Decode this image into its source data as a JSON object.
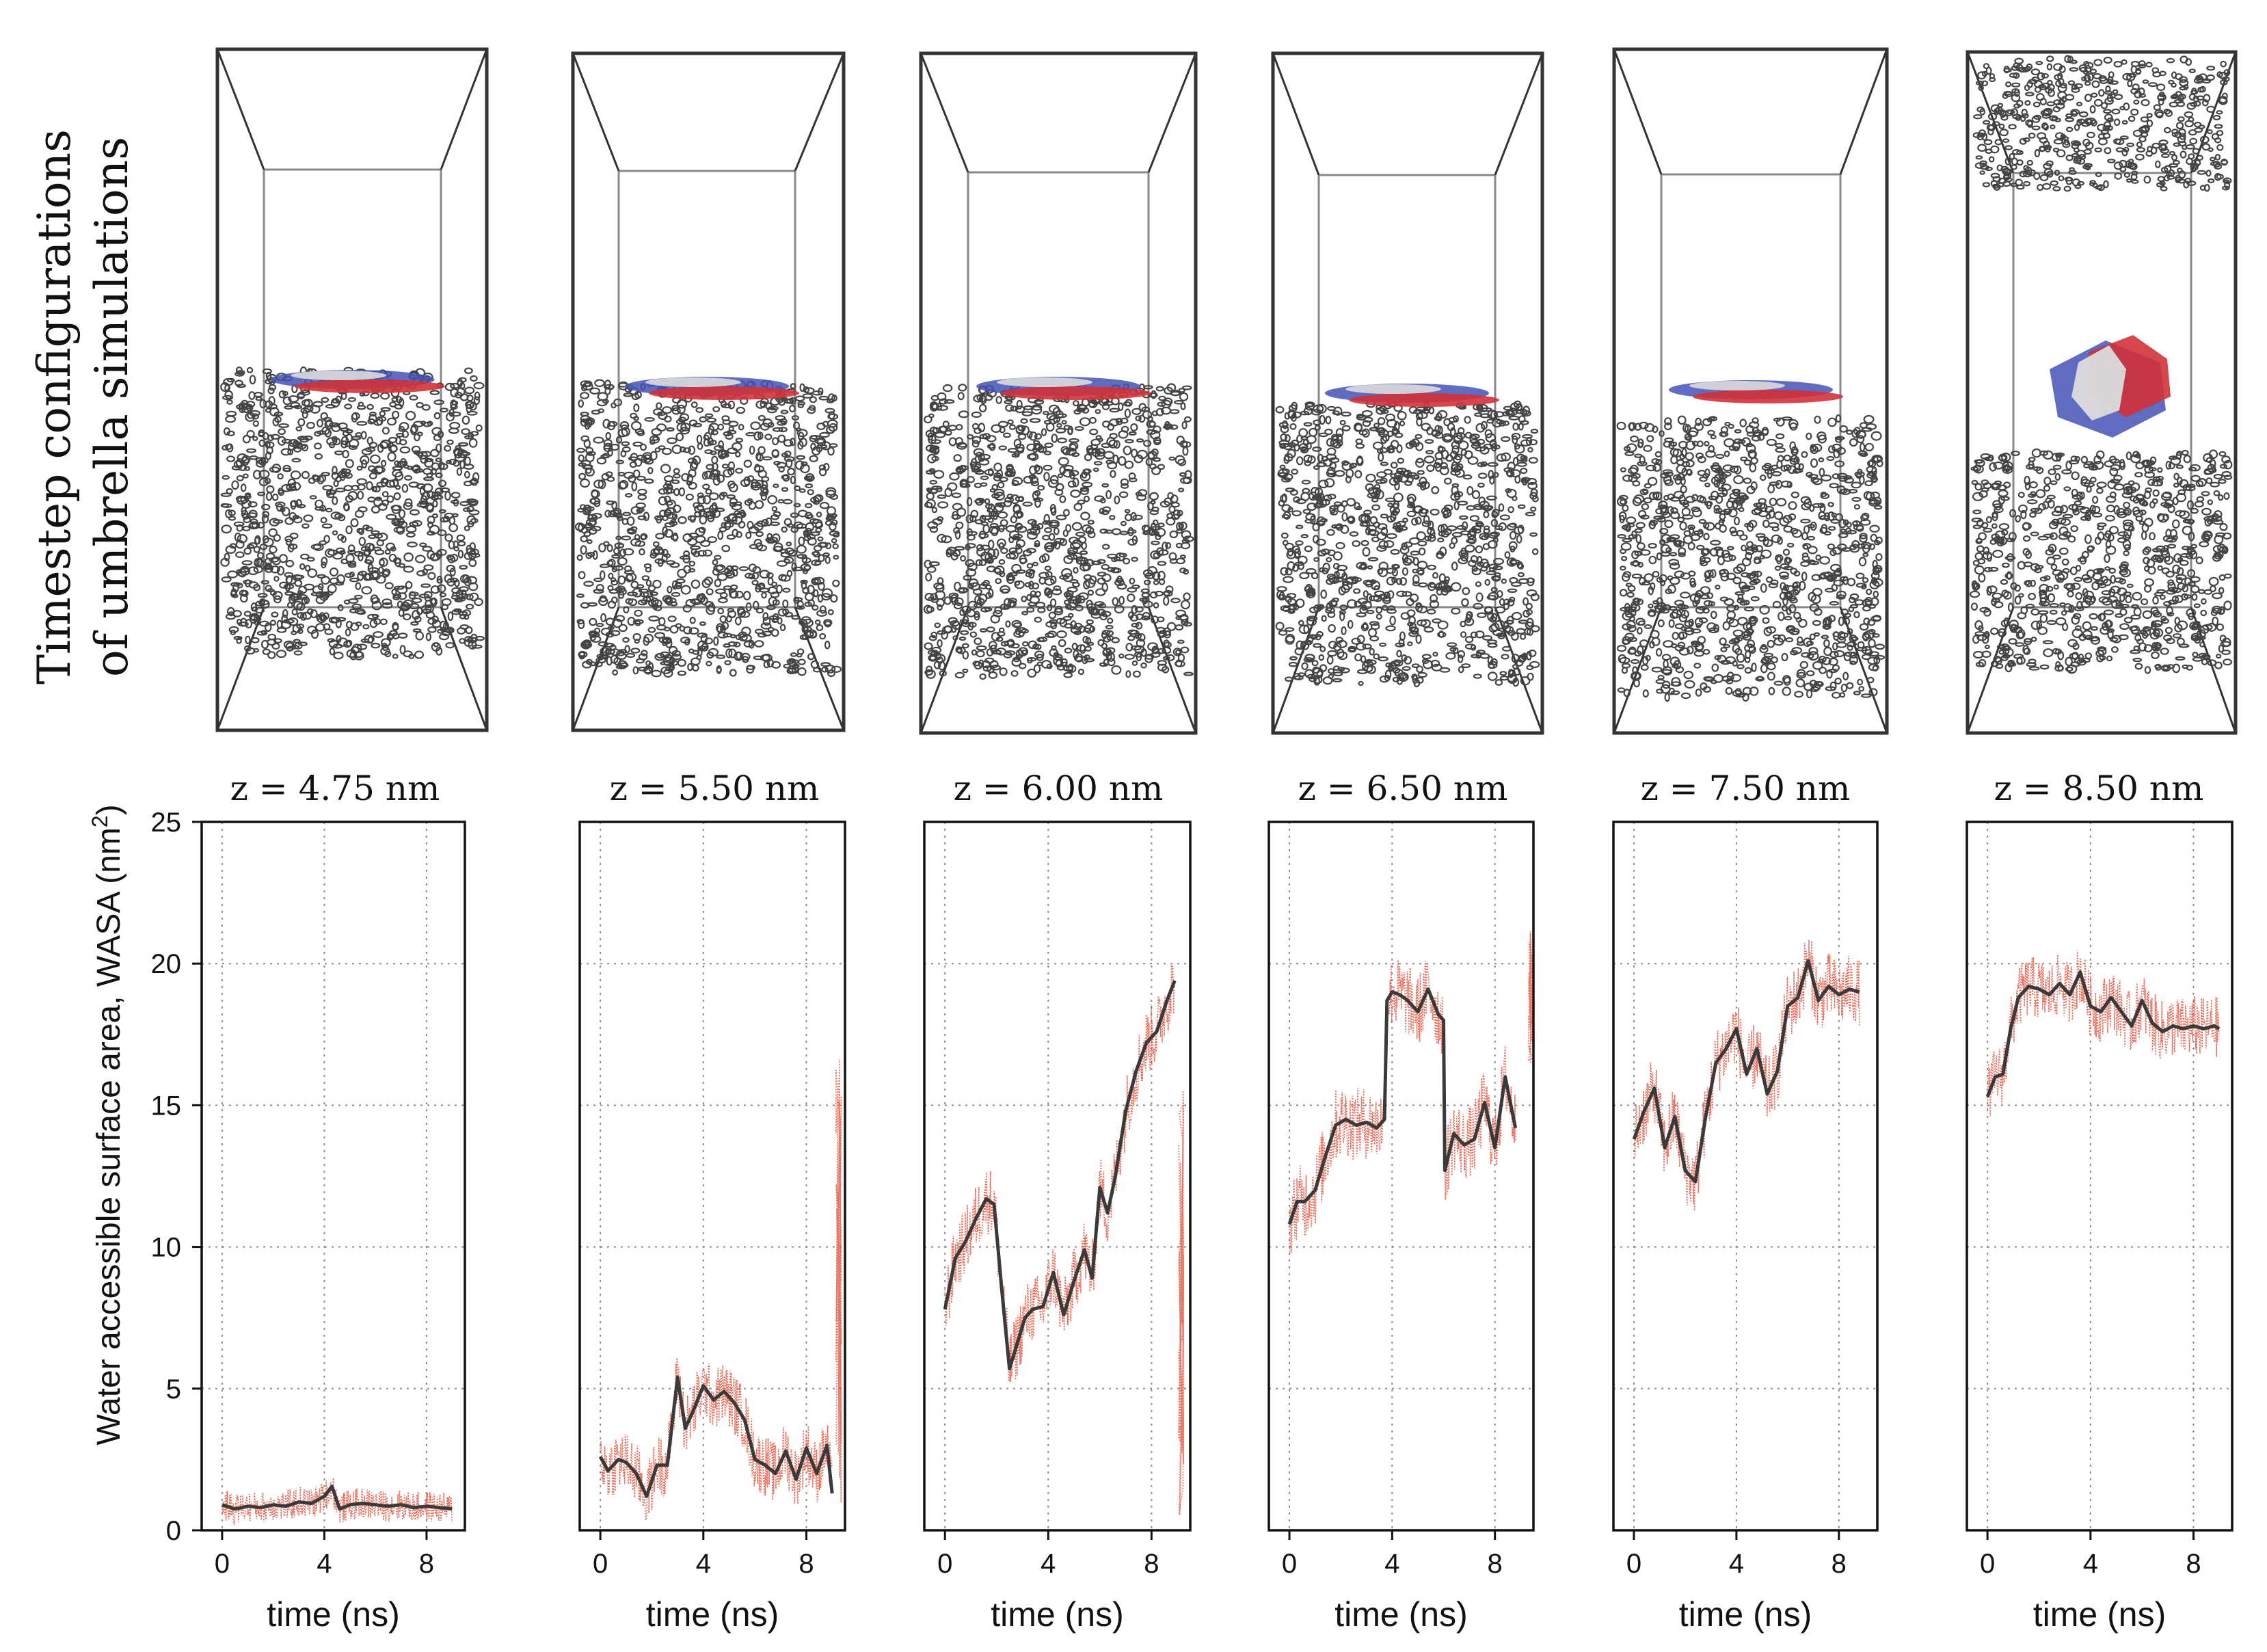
{
  "figure": {
    "top_row_title_line1": "Timestep configurations",
    "top_row_title_line2": "of umbrella simulations",
    "y_axis_label": "Water accessible surface area, WASA (nm",
    "y_axis_label_sup": "2",
    "y_axis_label_close": ")",
    "x_axis_label": "time (ns)"
  },
  "colors": {
    "mean_line": "#3a3a3a",
    "raw_trace": "#e2553f",
    "grid": "#8a8a8a",
    "axes": "#111111",
    "box_outer": "#333333",
    "box_inner": "#888888",
    "water": "#444444",
    "sheet_red": "#d0323a",
    "sheet_blue": "#4452b4",
    "sheet_white": "#dcdcdc"
  },
  "chart_data": [
    {
      "type": "line",
      "title": "z = 4.75 nm",
      "xlabel": "time (ns)",
      "ylabel": "Water accessible surface area, WASA (nm2)",
      "xlim": [
        -0.8,
        9.5
      ],
      "ylim": [
        0,
        25
      ],
      "xticks": [
        "0",
        "4",
        "8"
      ],
      "yticks": [
        "0",
        "5",
        "10",
        "15",
        "20",
        "25"
      ],
      "grid": true,
      "noise_amplitude": 0.55,
      "series": [
        {
          "name": "mean",
          "x": [
            0.0,
            0.5,
            1.0,
            1.5,
            2.0,
            2.5,
            3.0,
            3.5,
            4.0,
            4.3,
            4.6,
            5.0,
            5.5,
            6.0,
            6.5,
            7.0,
            7.5,
            8.0,
            8.5,
            9.0
          ],
          "y": [
            0.9,
            0.75,
            0.85,
            0.8,
            0.9,
            0.85,
            1.0,
            0.95,
            1.2,
            1.55,
            0.75,
            0.9,
            0.95,
            0.9,
            0.85,
            0.9,
            0.8,
            0.85,
            0.8,
            0.75
          ]
        }
      ]
    },
    {
      "type": "line",
      "title": "z = 5.50 nm",
      "xlabel": "time (ns)",
      "xlim": [
        -0.8,
        9.5
      ],
      "ylim": [
        0,
        25
      ],
      "xticks": [
        "0",
        "4",
        "8"
      ],
      "grid": true,
      "noise_amplitude": 1.1,
      "raw_tail": {
        "x": 9.25,
        "ymin": 0.5,
        "ymax": 17.8
      },
      "series": [
        {
          "name": "mean",
          "x": [
            0.0,
            0.3,
            0.7,
            1.0,
            1.4,
            1.8,
            2.2,
            2.6,
            3.0,
            3.3,
            3.6,
            4.0,
            4.4,
            4.8,
            5.2,
            5.6,
            6.0,
            6.4,
            6.8,
            7.2,
            7.6,
            8.0,
            8.4,
            8.8,
            9.0
          ],
          "y": [
            2.6,
            2.1,
            2.5,
            2.4,
            2.0,
            1.2,
            2.3,
            2.3,
            5.4,
            3.6,
            4.2,
            5.1,
            4.6,
            4.9,
            4.5,
            3.9,
            2.5,
            2.3,
            2.0,
            2.8,
            1.8,
            2.9,
            2.0,
            3.0,
            1.3
          ]
        }
      ]
    },
    {
      "type": "line",
      "title": "z = 6.00 nm",
      "xlabel": "time (ns)",
      "xlim": [
        -0.8,
        9.5
      ],
      "ylim": [
        0,
        25
      ],
      "xticks": [
        "0",
        "4",
        "8"
      ],
      "grid": true,
      "noise_amplitude": 1.2,
      "raw_tail": {
        "x": 9.15,
        "ymin": 0.4,
        "ymax": 16.0
      },
      "series": [
        {
          "name": "mean",
          "x": [
            0.0,
            0.4,
            0.8,
            1.2,
            1.6,
            1.9,
            2.2,
            2.5,
            2.8,
            3.1,
            3.4,
            3.8,
            4.2,
            4.6,
            5.0,
            5.4,
            5.7,
            6.0,
            6.3,
            6.6,
            7.0,
            7.4,
            7.8,
            8.2,
            8.6,
            8.9
          ],
          "y": [
            7.8,
            9.6,
            10.2,
            11.0,
            11.7,
            11.5,
            8.5,
            5.7,
            6.6,
            7.5,
            7.8,
            7.9,
            9.1,
            7.6,
            8.8,
            9.9,
            8.9,
            12.1,
            11.2,
            12.5,
            14.8,
            16.2,
            17.2,
            17.6,
            18.7,
            19.4
          ]
        }
      ]
    },
    {
      "type": "line",
      "title": "z = 6.50 nm",
      "xlabel": "time (ns)",
      "xlim": [
        -0.8,
        9.5
      ],
      "ylim": [
        0,
        25
      ],
      "xticks": [
        "0",
        "4",
        "8"
      ],
      "grid": true,
      "noise_amplitude": 1.3,
      "raw_tail": {
        "x": 9.4,
        "ymin": 16.5,
        "ymax": 21.2
      },
      "series": [
        {
          "name": "mean",
          "x": [
            0.0,
            0.3,
            0.6,
            1.0,
            1.4,
            1.8,
            2.2,
            2.6,
            3.0,
            3.4,
            3.7,
            3.8,
            4.0,
            4.3,
            4.6,
            5.0,
            5.4,
            5.8,
            6.0,
            6.05,
            6.4,
            6.8,
            7.2,
            7.6,
            8.0,
            8.4,
            8.8
          ],
          "y": [
            10.8,
            11.6,
            11.6,
            12.0,
            13.2,
            14.3,
            14.5,
            14.3,
            14.4,
            14.2,
            14.5,
            18.7,
            19.0,
            18.9,
            18.7,
            18.3,
            19.1,
            18.2,
            18.0,
            12.7,
            14.0,
            13.6,
            13.8,
            15.1,
            13.5,
            16.0,
            14.2
          ]
        }
      ]
    },
    {
      "type": "line",
      "title": "z = 7.50 nm",
      "xlabel": "time (ns)",
      "xlim": [
        -0.8,
        9.5
      ],
      "ylim": [
        0,
        25
      ],
      "xticks": [
        "0",
        "4",
        "8"
      ],
      "grid": true,
      "noise_amplitude": 1.2,
      "series": [
        {
          "name": "mean",
          "x": [
            0.0,
            0.4,
            0.8,
            1.2,
            1.6,
            2.0,
            2.4,
            2.8,
            3.2,
            3.6,
            4.0,
            4.4,
            4.8,
            5.2,
            5.6,
            6.0,
            6.4,
            6.8,
            7.2,
            7.6,
            8.0,
            8.4,
            8.8
          ],
          "y": [
            13.8,
            14.8,
            15.6,
            13.5,
            14.6,
            12.7,
            12.3,
            14.6,
            16.5,
            17.0,
            17.7,
            16.1,
            17.0,
            15.4,
            16.2,
            18.5,
            18.8,
            20.1,
            18.7,
            19.2,
            18.9,
            19.1,
            19.0
          ]
        }
      ]
    },
    {
      "type": "line",
      "title": "z = 8.50 nm",
      "xlabel": "time (ns)",
      "xlim": [
        -0.8,
        9.5
      ],
      "ylim": [
        0,
        25
      ],
      "xticks": [
        "0",
        "4",
        "8"
      ],
      "grid": true,
      "noise_amplitude": 1.1,
      "series": [
        {
          "name": "mean",
          "x": [
            0.0,
            0.3,
            0.6,
            0.9,
            1.2,
            1.6,
            2.0,
            2.4,
            2.8,
            3.2,
            3.6,
            4.0,
            4.4,
            4.8,
            5.2,
            5.6,
            6.0,
            6.4,
            6.8,
            7.2,
            7.6,
            8.0,
            8.4,
            8.8,
            9.0
          ],
          "y": [
            15.3,
            16.0,
            16.1,
            17.7,
            18.8,
            19.2,
            19.1,
            18.9,
            19.3,
            18.9,
            19.7,
            18.5,
            18.3,
            18.8,
            18.3,
            17.8,
            18.7,
            17.9,
            17.6,
            17.8,
            17.7,
            17.8,
            17.7,
            17.8,
            17.7
          ]
        }
      ]
    }
  ]
}
